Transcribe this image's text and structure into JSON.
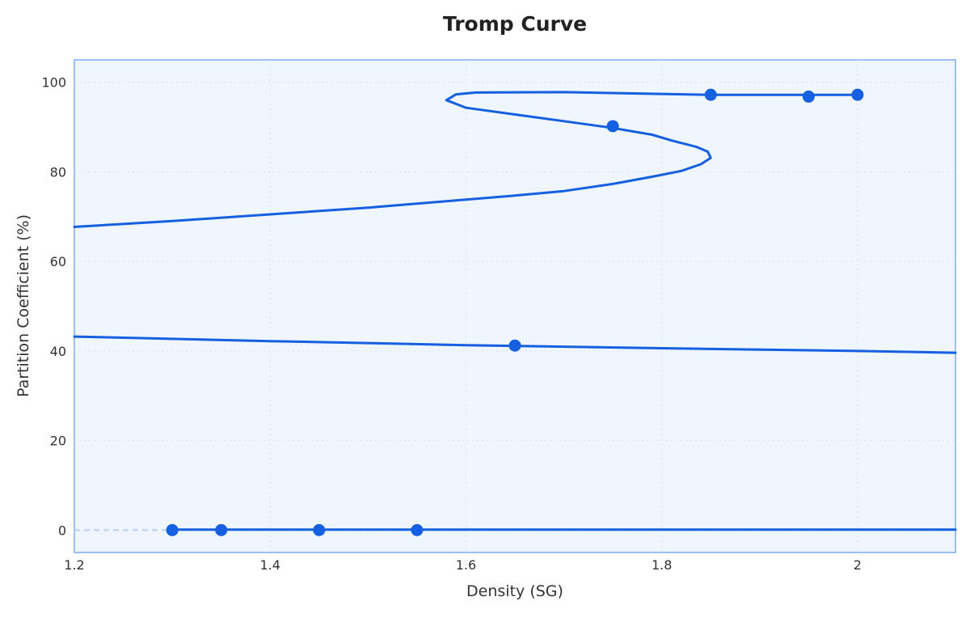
{
  "chart_data": {
    "type": "line",
    "title": "Tromp Curve",
    "xlabel": "Density (SG)",
    "ylabel": "Partition Coefficient (%)",
    "xlim": [
      1.2,
      2.1
    ],
    "ylim": [
      -5,
      105
    ],
    "x_ticks": [
      1.2,
      1.4,
      1.6,
      1.8,
      2.0
    ],
    "x_tick_labels": [
      "1.2",
      "1.4",
      "1.6",
      "1.8",
      "2"
    ],
    "y_ticks": [
      0,
      20,
      40,
      60,
      80,
      100
    ],
    "y_tick_labels": [
      "0",
      "20",
      "40",
      "60",
      "80",
      "100"
    ],
    "grid": true,
    "legend": "none",
    "colors": {
      "line": "#1560e0",
      "marker": "#1560e0",
      "plot_background": "#f0f6fd",
      "plot_border": "#9cbff5",
      "grid": "#d8e3f2",
      "reference_line": "#b8d0f3"
    },
    "reference_line": {
      "y": 0,
      "style": "dashed"
    },
    "points": [
      {
        "x": 1.3,
        "y": 0
      },
      {
        "x": 1.35,
        "y": 0
      },
      {
        "x": 1.45,
        "y": 0
      },
      {
        "x": 1.55,
        "y": 0
      },
      {
        "x": 1.65,
        "y": 41.2
      },
      {
        "x": 1.75,
        "y": 90.2
      },
      {
        "x": 1.85,
        "y": 97.2
      },
      {
        "x": 1.95,
        "y": 96.8
      },
      {
        "x": 2.0,
        "y": 97.2
      }
    ],
    "curve_segments": [
      {
        "name": "lower-branch",
        "x": [
          1.3,
          1.35,
          1.45,
          1.55,
          1.7,
          1.85,
          2.0,
          2.1
        ],
        "y": [
          0.1,
          0.1,
          0.1,
          0.1,
          0.1,
          0.1,
          0.1,
          0.1
        ]
      },
      {
        "name": "middle-branch",
        "x": [
          1.2,
          1.4,
          1.6,
          1.8,
          2.0,
          2.1
        ],
        "y": [
          43.2,
          42.2,
          41.3,
          40.6,
          40.0,
          39.6
        ]
      },
      {
        "name": "upper-branch",
        "x": [
          1.2,
          1.3,
          1.4,
          1.5,
          1.6,
          1.65,
          1.7,
          1.75,
          1.79,
          1.82,
          1.84,
          1.85,
          1.847,
          1.835,
          1.81,
          1.79,
          1.75,
          1.7,
          1.65,
          1.6,
          1.58,
          1.59,
          1.61,
          1.7,
          1.85,
          1.95,
          2.0
        ],
        "y": [
          67.7,
          69.0,
          70.5,
          72.0,
          73.8,
          74.7,
          75.7,
          77.3,
          78.9,
          80.2,
          81.7,
          83.1,
          84.5,
          85.6,
          87.0,
          88.3,
          89.8,
          91.3,
          92.8,
          94.3,
          96.0,
          97.3,
          97.7,
          97.8,
          97.2,
          97.2,
          97.2
        ]
      }
    ]
  }
}
